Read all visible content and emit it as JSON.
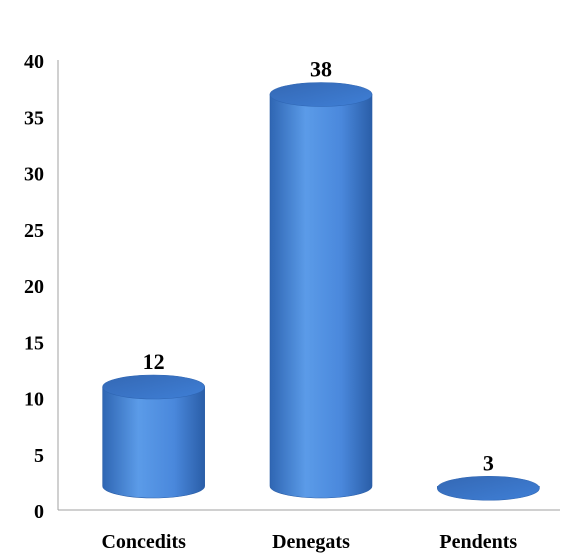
{
  "chart_data": {
    "type": "bar",
    "style": "3d-cylinder",
    "categories": [
      "Concedits",
      "Denegats",
      "Pendents"
    ],
    "values": [
      12,
      38,
      3
    ],
    "data_labels": [
      "12",
      "38",
      "3"
    ],
    "ylim": [
      0,
      40
    ],
    "y_ticks": [
      0,
      5,
      10,
      15,
      20,
      25,
      30,
      35,
      40
    ],
    "y_tick_labels": [
      "0",
      "5",
      "10",
      "15",
      "20",
      "25",
      "30",
      "35",
      "40"
    ],
    "grid": false,
    "legend": "none",
    "colors": {
      "bar_light": "#5b9be8",
      "bar_mid": "#3f7fd6",
      "bar_dark": "#2a5ea8",
      "bar_top": "#3a73c4",
      "axis": "#a0a0a0"
    }
  }
}
